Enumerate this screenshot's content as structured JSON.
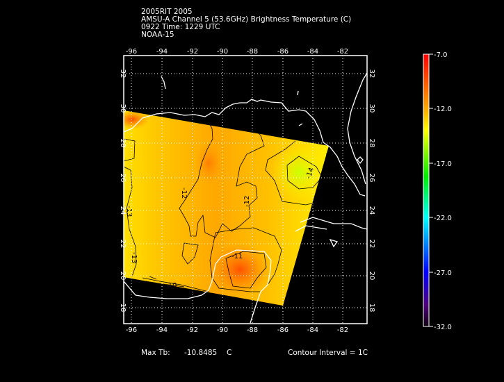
{
  "header": {
    "line1": "2005RIT 2005",
    "line2": "AMSU-A Channel 5 (53.6GHz) Brightness Temperature (C)",
    "line3": "0922 Time: 1229 UTC",
    "line4": "NOAA-15"
  },
  "map": {
    "lon_ticks": [
      "-96",
      "-94",
      "-92",
      "-90",
      "-88",
      "-86",
      "-84",
      "-82"
    ],
    "lat_ticks": [
      "32",
      "30",
      "28",
      "26",
      "24",
      "22",
      "20",
      "18"
    ],
    "lon_range": [
      -96.5,
      -80.5
    ],
    "lat_range": [
      17.5,
      33
    ],
    "grid": "dotted",
    "contour_labels": [
      "-12",
      "-12",
      "-13",
      "-13",
      "-11",
      "-14",
      "-10"
    ],
    "colors": {
      "coast": "#ffffff",
      "contour": "#000000",
      "warm": "#ff5a00",
      "mid": "#ffaa00",
      "cool": "#ccff00"
    }
  },
  "colorbar": {
    "labels": [
      "-7.0",
      "-12.0",
      "-17.0",
      "-22.0",
      "-27.0",
      "-32.0"
    ],
    "range": [
      -32.0,
      -7.0
    ]
  },
  "footer": {
    "max_label": "Max Tb:",
    "max_value": "-10.8485",
    "max_unit": "C",
    "contour_interval": "Contour Interval = 1C"
  }
}
